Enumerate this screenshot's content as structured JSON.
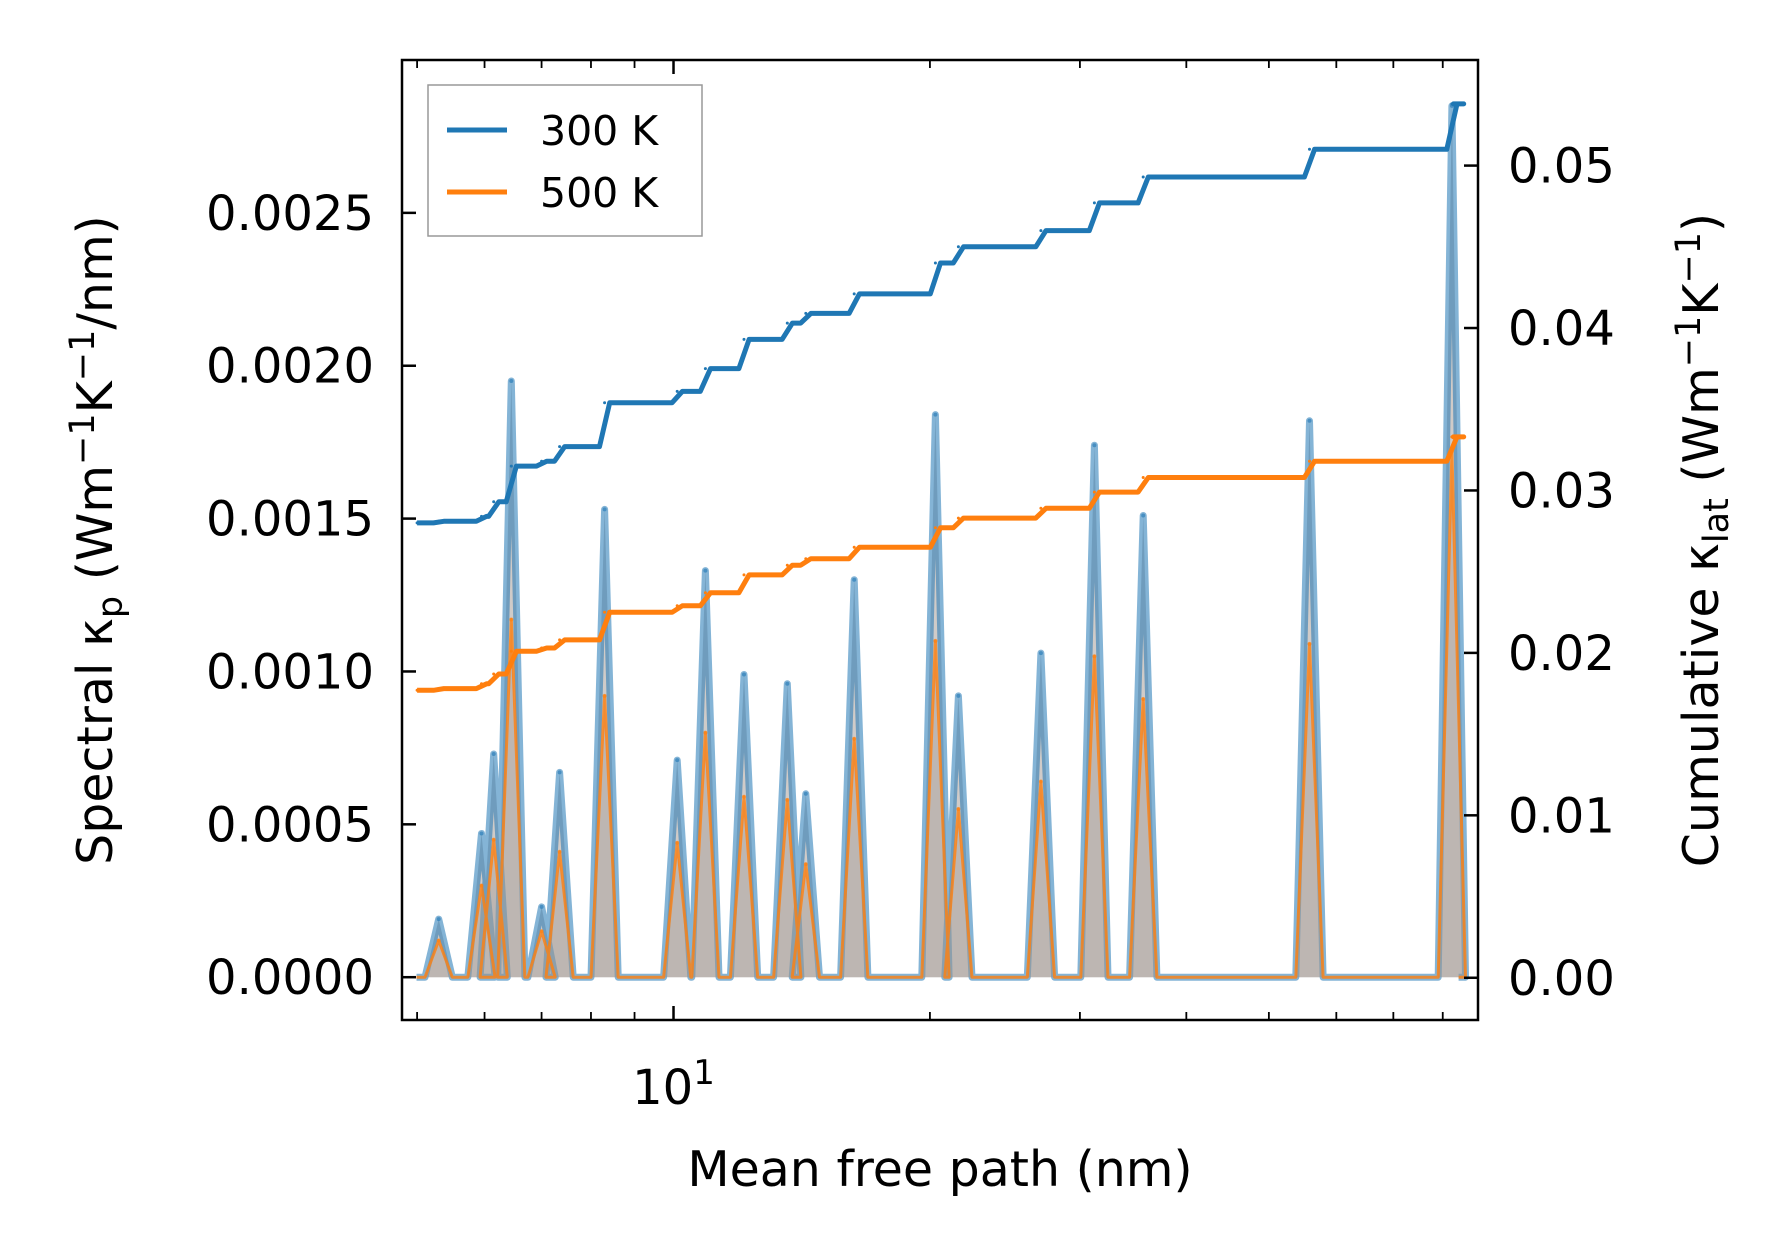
{
  "chart_data": {
    "type": "line",
    "xlabel": "Mean free path (nm)",
    "xscale": "log",
    "xlim": [
      4.8,
      88
    ],
    "x_tick_labels": [
      {
        "value": 10,
        "base": "10",
        "exp": "1"
      }
    ],
    "ylabel_left": {
      "prefix": "Spectral κ",
      "sub": "p",
      "units_open": " (Wm",
      "e1": "−1",
      "mid": "K",
      "e2": "−1",
      "tail": "/nm)"
    },
    "ylabel_right": {
      "prefix": "Cumulative κ",
      "sub": "lat",
      "units_open": " (Wm",
      "e1": "−1",
      "mid": "K",
      "e2": "−1",
      "tail": ")"
    },
    "ylim_left": [
      -0.00014,
      0.003
    ],
    "yticks_left": [
      0.0,
      0.0005,
      0.001,
      0.0015,
      0.002,
      0.0025
    ],
    "ytick_labels_left": [
      "0.0000",
      "0.0005",
      "0.0010",
      "0.0015",
      "0.0020",
      "0.0025"
    ],
    "ylim_right": [
      -0.0026,
      0.0565
    ],
    "yticks_right": [
      0.0,
      0.01,
      0.02,
      0.03,
      0.04,
      0.05
    ],
    "ytick_labels_right": [
      "0.00",
      "0.01",
      "0.02",
      "0.03",
      "0.04",
      "0.05"
    ],
    "colors": {
      "t300": "#1f77b4",
      "t500": "#ff7f0e",
      "fill": "#a9a19b"
    },
    "legend": {
      "position": "top-left",
      "entries": [
        "300 K",
        "500 K"
      ]
    },
    "spectral_series": [
      {
        "name": "300 K",
        "axis": "left",
        "color": "#1f77b4",
        "peaks": [
          [
            5.3,
            0.00019
          ],
          [
            5.95,
            0.00047
          ],
          [
            6.15,
            0.00073
          ],
          [
            6.45,
            0.00195
          ],
          [
            7.0,
            0.00023
          ],
          [
            7.35,
            0.00067
          ],
          [
            8.3,
            0.00153
          ],
          [
            10.1,
            0.00071
          ],
          [
            10.9,
            0.00133
          ],
          [
            12.1,
            0.00099
          ],
          [
            13.6,
            0.00096
          ],
          [
            14.3,
            0.0006
          ],
          [
            16.3,
            0.0013
          ],
          [
            20.3,
            0.00184
          ],
          [
            21.6,
            0.00092
          ],
          [
            27.0,
            0.00106
          ],
          [
            31.2,
            0.00174
          ],
          [
            35.6,
            0.00151
          ],
          [
            55.8,
            0.00182
          ],
          [
            82.0,
            0.00285
          ]
        ]
      },
      {
        "name": "500 K",
        "axis": "left",
        "color": "#ff7f0e",
        "peaks": [
          [
            5.3,
            0.00012
          ],
          [
            5.95,
            0.0003
          ],
          [
            6.15,
            0.00045
          ],
          [
            6.45,
            0.00117
          ],
          [
            7.0,
            0.00015
          ],
          [
            7.35,
            0.00041
          ],
          [
            8.3,
            0.00092
          ],
          [
            10.1,
            0.00044
          ],
          [
            10.9,
            0.0008
          ],
          [
            12.1,
            0.00059
          ],
          [
            13.6,
            0.00058
          ],
          [
            14.3,
            0.00037
          ],
          [
            16.3,
            0.00078
          ],
          [
            20.3,
            0.0011
          ],
          [
            21.6,
            0.00055
          ],
          [
            27.0,
            0.00064
          ],
          [
            31.2,
            0.00105
          ],
          [
            35.6,
            0.00091
          ],
          [
            55.8,
            0.00109
          ],
          [
            82.0,
            0.00172
          ]
        ]
      }
    ],
    "cumulative_series": [
      {
        "name": "300 K",
        "axis": "right",
        "color": "#1f77b4",
        "points": [
          [
            5.0,
            0.028
          ],
          [
            5.3,
            0.0281
          ],
          [
            5.95,
            0.0284
          ],
          [
            6.15,
            0.0293
          ],
          [
            6.45,
            0.0315
          ],
          [
            7.0,
            0.0318
          ],
          [
            7.35,
            0.0327
          ],
          [
            8.3,
            0.0354
          ],
          [
            10.1,
            0.0361
          ],
          [
            10.9,
            0.0375
          ],
          [
            12.1,
            0.0393
          ],
          [
            13.6,
            0.0403
          ],
          [
            14.3,
            0.0409
          ],
          [
            16.3,
            0.0421
          ],
          [
            20.3,
            0.044
          ],
          [
            21.6,
            0.045
          ],
          [
            27.0,
            0.046
          ],
          [
            31.2,
            0.0477
          ],
          [
            35.6,
            0.0493
          ],
          [
            55.8,
            0.051
          ],
          [
            82.0,
            0.0538
          ],
          [
            83.5,
            0.0538
          ]
        ]
      },
      {
        "name": "500 K",
        "axis": "right",
        "color": "#ff7f0e",
        "points": [
          [
            5.0,
            0.0177
          ],
          [
            5.3,
            0.0178
          ],
          [
            5.95,
            0.0181
          ],
          [
            6.15,
            0.0187
          ],
          [
            6.45,
            0.0201
          ],
          [
            7.0,
            0.0203
          ],
          [
            7.35,
            0.0208
          ],
          [
            8.3,
            0.0225
          ],
          [
            10.1,
            0.0229
          ],
          [
            10.9,
            0.0237
          ],
          [
            12.1,
            0.0248
          ],
          [
            13.6,
            0.0254
          ],
          [
            14.3,
            0.0258
          ],
          [
            16.3,
            0.0265
          ],
          [
            20.3,
            0.0277
          ],
          [
            21.6,
            0.0283
          ],
          [
            27.0,
            0.0289
          ],
          [
            31.2,
            0.0299
          ],
          [
            35.6,
            0.0308
          ],
          [
            55.8,
            0.0318
          ],
          [
            82.0,
            0.0333
          ],
          [
            83.5,
            0.0333
          ]
        ]
      }
    ]
  }
}
